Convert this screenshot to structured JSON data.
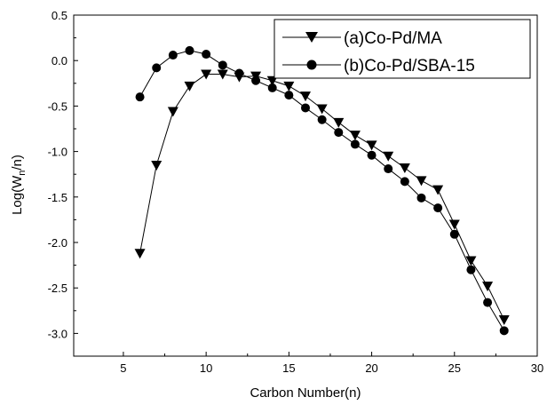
{
  "chart_data": {
    "type": "line",
    "xlabel": "Carbon Number(n)",
    "ylabel_prefix": "Log(W",
    "ylabel_sub": "n",
    "ylabel_suffix": "/n)",
    "xlim": [
      2,
      30
    ],
    "ylim": [
      -3.25,
      0.5
    ],
    "xticks": [
      "5",
      "10",
      "15",
      "20",
      "25",
      "30"
    ],
    "yticks": [
      "0.5",
      "0.0",
      "-0.5",
      "-1.0",
      "-1.5",
      "-2.0",
      "-2.5",
      "-3.0"
    ],
    "grid": false,
    "legend_position": "top-right",
    "series": [
      {
        "name": "(a)Co-Pd/MA",
        "marker": "triangle-down",
        "color": "#000000",
        "x": [
          6,
          7,
          8,
          9,
          10,
          11,
          12,
          13,
          14,
          15,
          16,
          17,
          18,
          19,
          20,
          21,
          22,
          23,
          24,
          25,
          26,
          27,
          28
        ],
        "y": [
          -2.12,
          -1.15,
          -0.56,
          -0.28,
          -0.15,
          -0.15,
          -0.18,
          -0.17,
          -0.22,
          -0.28,
          -0.39,
          -0.53,
          -0.68,
          -0.82,
          -0.93,
          -1.05,
          -1.18,
          -1.32,
          -1.42,
          -1.8,
          -2.2,
          -2.48,
          -2.85
        ]
      },
      {
        "name": "(b)Co-Pd/SBA-15",
        "marker": "circle",
        "color": "#000000",
        "x": [
          6,
          7,
          8,
          9,
          10,
          11,
          12,
          13,
          14,
          15,
          16,
          17,
          18,
          19,
          20,
          21,
          22,
          23,
          24,
          25,
          26,
          27,
          28
        ],
        "y": [
          -0.4,
          -0.08,
          0.06,
          0.11,
          0.07,
          -0.05,
          -0.14,
          -0.22,
          -0.3,
          -0.38,
          -0.52,
          -0.65,
          -0.79,
          -0.92,
          -1.04,
          -1.19,
          -1.33,
          -1.51,
          -1.62,
          -1.91,
          -2.3,
          -2.66,
          -2.97
        ]
      }
    ]
  }
}
